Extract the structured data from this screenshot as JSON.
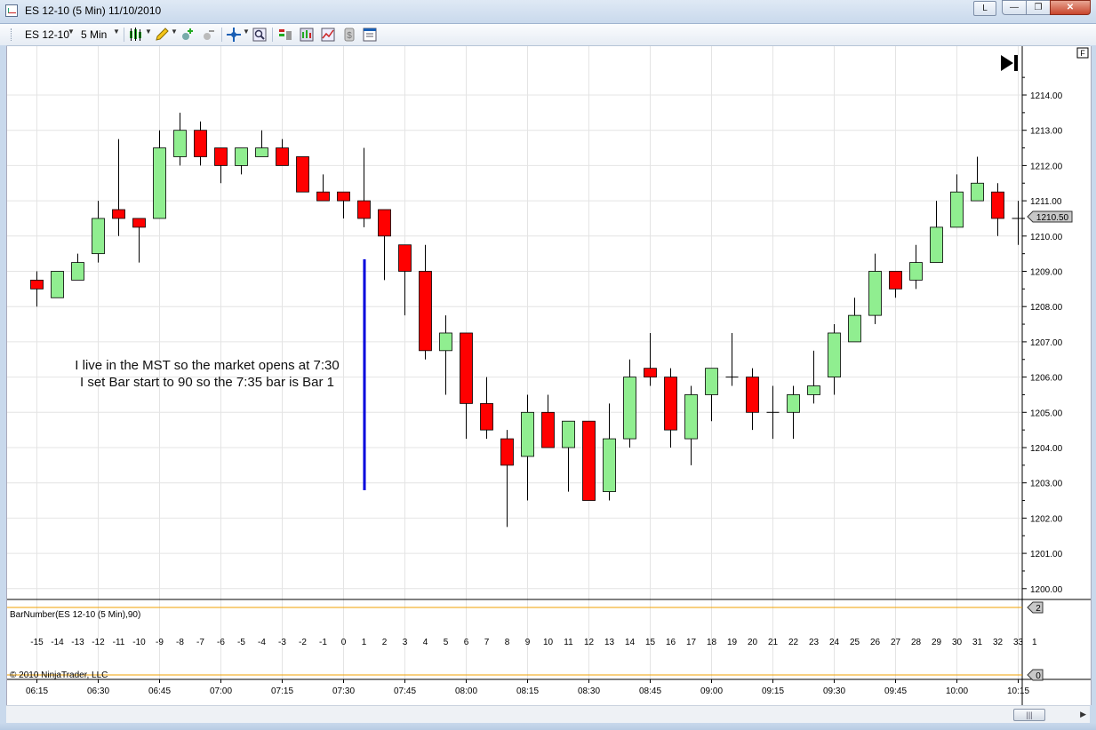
{
  "window": {
    "title": "ES 12-10 (5 Min)  11/10/2010",
    "btn_l": "L",
    "btn_min": "—",
    "btn_max": "❐",
    "btn_close": "✕"
  },
  "toolbar": {
    "instrument": "ES 12-10",
    "interval": "5 Min"
  },
  "chart": {
    "f_button": "F",
    "price_axis_labels": [
      "1214.00",
      "1213.00",
      "1212.00",
      "1211.00",
      "1210.00",
      "1209.00",
      "1208.00",
      "1207.00",
      "1206.00",
      "1205.00",
      "1204.00",
      "1203.00",
      "1202.00",
      "1201.00",
      "1200.00"
    ],
    "last_price_label": "1210.50",
    "time_labels": [
      "06:15",
      "06:30",
      "06:45",
      "07:00",
      "07:15",
      "07:30",
      "07:45",
      "08:00",
      "08:15",
      "08:30",
      "08:45",
      "09:00",
      "09:15",
      "09:30",
      "09:45",
      "10:00",
      "10:15"
    ],
    "annotation_line1": "I live in the MST so the market opens at 7:30",
    "annotation_line2": "I set Bar start to 90 so the 7:35 bar is Bar 1",
    "indicator_label": "BarNumber(ES 12-10 (5 Min),90)",
    "indicator_axis_top": "2",
    "indicator_axis_mid": "1",
    "indicator_axis_bottom": "0",
    "copyright": "© 2010 NinjaTrader, LLC",
    "bar_numbers": [
      "-15",
      "-14",
      "-13",
      "-12",
      "-11",
      "-10",
      "-9",
      "-8",
      "-7",
      "-6",
      "-5",
      "-4",
      "-3",
      "-2",
      "-1",
      "0",
      "1",
      "2",
      "3",
      "4",
      "5",
      "6",
      "7",
      "8",
      "9",
      "10",
      "11",
      "12",
      "13",
      "14",
      "15",
      "16",
      "17",
      "18",
      "19",
      "20",
      "21",
      "22",
      "23",
      "24",
      "25",
      "26",
      "27",
      "28",
      "29",
      "30",
      "31",
      "32",
      "33"
    ]
  },
  "colors": {
    "up": "#90ee90",
    "down": "#ff0000",
    "wick": "#000000",
    "annotation_line": "#0000dd",
    "indicator_line": "#ffa500"
  },
  "chart_data": {
    "type": "candlestick",
    "x_label": "",
    "y_label": "",
    "ylim": [
      1199.75,
      1214.75
    ],
    "bars": [
      {
        "o": 1208.75,
        "h": 1209.0,
        "l": 1208.0,
        "c": 1208.5
      },
      {
        "o": 1208.25,
        "h": 1209.0,
        "l": 1208.25,
        "c": 1209.0
      },
      {
        "o": 1208.75,
        "h": 1209.5,
        "l": 1208.75,
        "c": 1209.25
      },
      {
        "o": 1209.5,
        "h": 1211.0,
        "l": 1209.25,
        "c": 1210.5
      },
      {
        "o": 1210.75,
        "h": 1212.75,
        "l": 1210.0,
        "c": 1210.5
      },
      {
        "o": 1210.5,
        "h": 1210.5,
        "l": 1209.25,
        "c": 1210.25
      },
      {
        "o": 1210.5,
        "h": 1213.0,
        "l": 1210.5,
        "c": 1212.5
      },
      {
        "o": 1212.25,
        "h": 1213.5,
        "l": 1212.0,
        "c": 1213.0
      },
      {
        "o": 1213.0,
        "h": 1213.25,
        "l": 1212.0,
        "c": 1212.25
      },
      {
        "o": 1212.5,
        "h": 1212.5,
        "l": 1211.5,
        "c": 1212.0
      },
      {
        "o": 1212.0,
        "h": 1212.5,
        "l": 1211.75,
        "c": 1212.5
      },
      {
        "o": 1212.25,
        "h": 1213.0,
        "l": 1212.25,
        "c": 1212.5
      },
      {
        "o": 1212.5,
        "h": 1212.75,
        "l": 1212.0,
        "c": 1212.0
      },
      {
        "o": 1212.25,
        "h": 1212.25,
        "l": 1211.25,
        "c": 1211.25
      },
      {
        "o": 1211.25,
        "h": 1211.75,
        "l": 1211.0,
        "c": 1211.0
      },
      {
        "o": 1211.25,
        "h": 1211.25,
        "l": 1210.5,
        "c": 1211.0
      },
      {
        "o": 1211.0,
        "h": 1212.5,
        "l": 1210.25,
        "c": 1210.5
      },
      {
        "o": 1210.75,
        "h": 1210.75,
        "l": 1208.75,
        "c": 1210.0
      },
      {
        "o": 1209.75,
        "h": 1209.75,
        "l": 1207.75,
        "c": 1209.0
      },
      {
        "o": 1209.0,
        "h": 1209.75,
        "l": 1206.5,
        "c": 1206.75
      },
      {
        "o": 1206.75,
        "h": 1207.75,
        "l": 1205.5,
        "c": 1207.25
      },
      {
        "o": 1207.25,
        "h": 1207.25,
        "l": 1204.25,
        "c": 1205.25
      },
      {
        "o": 1205.25,
        "h": 1206.0,
        "l": 1204.25,
        "c": 1204.5
      },
      {
        "o": 1204.25,
        "h": 1204.5,
        "l": 1201.75,
        "c": 1203.5
      },
      {
        "o": 1203.75,
        "h": 1205.5,
        "l": 1202.5,
        "c": 1205.0
      },
      {
        "o": 1205.0,
        "h": 1205.5,
        "l": 1204.0,
        "c": 1204.0
      },
      {
        "o": 1204.0,
        "h": 1204.75,
        "l": 1202.75,
        "c": 1204.75
      },
      {
        "o": 1204.75,
        "h": 1204.75,
        "l": 1202.5,
        "c": 1202.5
      },
      {
        "o": 1202.75,
        "h": 1205.25,
        "l": 1202.5,
        "c": 1204.25
      },
      {
        "o": 1204.25,
        "h": 1206.5,
        "l": 1204.0,
        "c": 1206.0
      },
      {
        "o": 1206.25,
        "h": 1207.25,
        "l": 1205.75,
        "c": 1206.0
      },
      {
        "o": 1206.0,
        "h": 1206.25,
        "l": 1204.0,
        "c": 1204.5
      },
      {
        "o": 1204.25,
        "h": 1205.75,
        "l": 1203.5,
        "c": 1205.5
      },
      {
        "o": 1205.5,
        "h": 1206.25,
        "l": 1204.75,
        "c": 1206.25
      },
      {
        "o": 1206.0,
        "h": 1207.25,
        "l": 1205.75,
        "c": 1206.0
      },
      {
        "o": 1206.0,
        "h": 1206.25,
        "l": 1204.5,
        "c": 1205.0
      },
      {
        "o": 1205.0,
        "h": 1205.75,
        "l": 1204.25,
        "c": 1205.0
      },
      {
        "o": 1205.0,
        "h": 1205.75,
        "l": 1204.25,
        "c": 1205.5
      },
      {
        "o": 1205.5,
        "h": 1206.75,
        "l": 1205.25,
        "c": 1205.75
      },
      {
        "o": 1206.0,
        "h": 1207.5,
        "l": 1205.5,
        "c": 1207.25
      },
      {
        "o": 1207.0,
        "h": 1208.25,
        "l": 1207.0,
        "c": 1207.75
      },
      {
        "o": 1207.75,
        "h": 1209.5,
        "l": 1207.5,
        "c": 1209.0
      },
      {
        "o": 1209.0,
        "h": 1209.0,
        "l": 1208.25,
        "c": 1208.5
      },
      {
        "o": 1208.75,
        "h": 1209.75,
        "l": 1208.5,
        "c": 1209.25
      },
      {
        "o": 1209.25,
        "h": 1211.0,
        "l": 1209.25,
        "c": 1210.25
      },
      {
        "o": 1210.25,
        "h": 1211.75,
        "l": 1210.25,
        "c": 1211.25
      },
      {
        "o": 1211.0,
        "h": 1212.25,
        "l": 1211.0,
        "c": 1211.5
      },
      {
        "o": 1211.25,
        "h": 1211.5,
        "l": 1210.0,
        "c": 1210.5
      },
      {
        "o": 1210.5,
        "h": 1211.0,
        "l": 1209.75,
        "c": 1210.5
      }
    ]
  }
}
